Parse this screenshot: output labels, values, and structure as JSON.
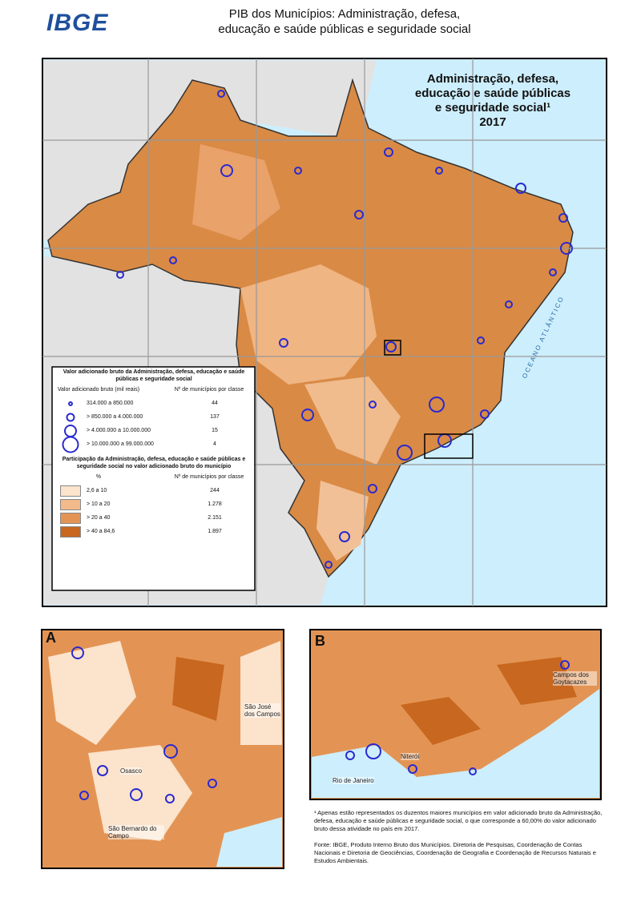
{
  "header": {
    "logo": "IBGE",
    "title_line1": "PIB dos Municípios: Administração, defesa,",
    "title_line2": "educação e saúde públicas e seguridade social"
  },
  "map": {
    "title_line1": "Administração, defesa,",
    "title_line2": "educação e saúde públicas",
    "title_line3": "e seguridade social¹",
    "year": "2017",
    "ocean": "OCEANO ATLÂNTICO"
  },
  "legend": {
    "title1": "Valor adicionado bruto da Administração, defesa, educação e saúde públicas e seguridade social",
    "col_value": "Valor adicionado bruto (mil reais)",
    "col_count": "Nº de municípios por classe",
    "size_classes": [
      {
        "label": "314.000 a 850.000",
        "count": "44"
      },
      {
        "label": "> 850.000 a 4.000.000",
        "count": "137"
      },
      {
        "label": "> 4.000.000 a 10.000.000",
        "count": "15"
      },
      {
        "label": "> 10.000.000 a 99.000.000",
        "count": "4"
      }
    ],
    "title2": "Participação da Administração, defesa, educação e saúde públicas e seguridade social no valor adicionado bruto do município",
    "col_pct": "%",
    "col_count2": "Nº de municípios por classe",
    "share_classes": [
      {
        "label": "2,6 a 10",
        "count": "244",
        "color": "#fbe3cc"
      },
      {
        "label": "> 10 a 20",
        "count": "1.278",
        "color": "#f2b98a"
      },
      {
        "label": "> 20 a 40",
        "count": "2.151",
        "color": "#e39454"
      },
      {
        "label": "> 40 a 84,6",
        "count": "1.897",
        "color": "#c8671f"
      }
    ]
  },
  "insets": {
    "a": {
      "letter": "A",
      "places": [
        "São José dos Campos",
        "Osasco",
        "São Bernardo do Campo"
      ]
    },
    "b": {
      "letter": "B",
      "places": [
        "Campos dos Goytacazes",
        "Rio de Janeiro",
        "Niterói"
      ]
    }
  },
  "footnote": "¹ Apenas estão representados os duzentos maiores municípios em valor adicionado bruto da Administração, defesa, educação e saúde públicas e seguridade social, o que corresponde a 60,00% do valor adicionado bruto dessa atividade no país em 2017.",
  "source": "Fonte: IBGE, Produto Interno Bruto dos Municípios. Diretoria de Pesquisas, Coordenação de Contas Nacionais e Diretoria de Geociências, Coordenação de Geografia e Coordenação de Recursos Naturais e Estudos Ambientais."
}
